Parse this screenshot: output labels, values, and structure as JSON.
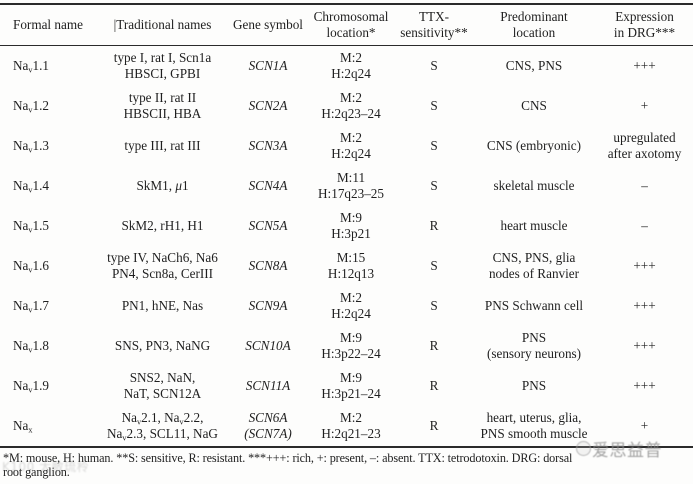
{
  "colors": {
    "text": "#1f1f1f",
    "rule": "#2b2b2b",
    "watermark_gray": "#8f8f8f"
  },
  "table": {
    "columns": [
      {
        "key": "formal",
        "lines": [
          "Formal name"
        ]
      },
      {
        "key": "traditional",
        "lines": [
          "|Traditional names"
        ]
      },
      {
        "key": "gene",
        "lines": [
          "Gene symbol"
        ]
      },
      {
        "key": "chromosomal",
        "lines": [
          "Chromosomal",
          "location*"
        ]
      },
      {
        "key": "ttx",
        "lines": [
          "TTX-",
          "sensitivity**"
        ]
      },
      {
        "key": "location",
        "lines": [
          "Predominant",
          "location"
        ]
      },
      {
        "key": "drg",
        "lines": [
          "Expression",
          "in DRG***"
        ]
      }
    ],
    "rows": [
      {
        "formal": [
          [
            {
              "t": "Na"
            },
            {
              "t": "v",
              "sub": true
            },
            {
              "t": "1.1"
            }
          ]
        ],
        "traditional": [
          "type I, rat I, Scn1a",
          "HBSCI, GPBI"
        ],
        "gene": [
          [
            {
              "t": "SCN1A",
              "i": true
            }
          ]
        ],
        "chromosomal": [
          "M:2",
          "H:2q24"
        ],
        "ttx": [
          "S"
        ],
        "location": [
          "CNS, PNS"
        ],
        "drg": [
          "+++"
        ]
      },
      {
        "formal": [
          [
            {
              "t": "Na"
            },
            {
              "t": "v",
              "sub": true
            },
            {
              "t": "1.2"
            }
          ]
        ],
        "traditional": [
          "type II, rat II",
          "HBSCII, HBA"
        ],
        "gene": [
          [
            {
              "t": "SCN2A",
              "i": true
            }
          ]
        ],
        "chromosomal": [
          "M:2",
          "H:2q23–24"
        ],
        "ttx": [
          "S"
        ],
        "location": [
          "CNS"
        ],
        "drg": [
          "+"
        ]
      },
      {
        "formal": [
          [
            {
              "t": "Na"
            },
            {
              "t": "v",
              "sub": true
            },
            {
              "t": "1.3"
            }
          ]
        ],
        "traditional": [
          "type III, rat III"
        ],
        "gene": [
          [
            {
              "t": "SCN3A",
              "i": true
            }
          ]
        ],
        "chromosomal": [
          "M:2",
          "H:2q24"
        ],
        "ttx": [
          "S"
        ],
        "location": [
          "CNS (embryonic)"
        ],
        "drg": [
          "upregulated",
          "after axotomy"
        ]
      },
      {
        "formal": [
          [
            {
              "t": "Na"
            },
            {
              "t": "v",
              "sub": true
            },
            {
              "t": "1.4"
            }
          ]
        ],
        "traditional": [
          [
            {
              "t": "SkM1, "
            },
            {
              "t": "μ",
              "i": true
            },
            {
              "t": "1"
            }
          ]
        ],
        "gene": [
          [
            {
              "t": "SCN4A",
              "i": true
            }
          ]
        ],
        "chromosomal": [
          "M:11",
          "H:17q23–25"
        ],
        "ttx": [
          "S"
        ],
        "location": [
          "skeletal muscle"
        ],
        "drg": [
          "–"
        ]
      },
      {
        "formal": [
          [
            {
              "t": "Na"
            },
            {
              "t": "v",
              "sub": true
            },
            {
              "t": "1.5"
            }
          ]
        ],
        "traditional": [
          "SkM2, rH1, H1"
        ],
        "gene": [
          [
            {
              "t": "SCN5A",
              "i": true
            }
          ]
        ],
        "chromosomal": [
          "M:9",
          "H:3p21"
        ],
        "ttx": [
          "R"
        ],
        "location": [
          "heart muscle"
        ],
        "drg": [
          "–"
        ]
      },
      {
        "formal": [
          [
            {
              "t": "Na"
            },
            {
              "t": "v",
              "sub": true
            },
            {
              "t": "1.6"
            }
          ]
        ],
        "traditional": [
          "type IV, NaCh6, Na6",
          "PN4, Scn8a, CerIII"
        ],
        "gene": [
          [
            {
              "t": "SCN8A",
              "i": true
            }
          ]
        ],
        "chromosomal": [
          "M:15",
          "H:12q13"
        ],
        "ttx": [
          "S"
        ],
        "location": [
          "CNS, PNS, glia",
          "nodes of Ranvier"
        ],
        "drg": [
          "+++"
        ]
      },
      {
        "formal": [
          [
            {
              "t": "Na"
            },
            {
              "t": "v",
              "sub": true
            },
            {
              "t": "1.7"
            }
          ]
        ],
        "traditional": [
          "PN1, hNE, Nas"
        ],
        "gene": [
          [
            {
              "t": "SCN9A",
              "i": true
            }
          ]
        ],
        "chromosomal": [
          "M:2",
          "H:2q24"
        ],
        "ttx": [
          "S"
        ],
        "location": [
          "PNS Schwann cell"
        ],
        "drg": [
          "+++"
        ]
      },
      {
        "formal": [
          [
            {
              "t": "Na"
            },
            {
              "t": "v",
              "sub": true
            },
            {
              "t": "1.8"
            }
          ]
        ],
        "traditional": [
          "SNS, PN3, NaNG"
        ],
        "gene": [
          [
            {
              "t": "SCN10A",
              "i": true
            }
          ]
        ],
        "chromosomal": [
          "M:9",
          "H:3p22–24"
        ],
        "ttx": [
          "R"
        ],
        "location": [
          "PNS",
          "(sensory neurons)"
        ],
        "drg": [
          "+++"
        ]
      },
      {
        "formal": [
          [
            {
              "t": "Na"
            },
            {
              "t": "v",
              "sub": true
            },
            {
              "t": "1.9"
            }
          ]
        ],
        "traditional": [
          "SNS2, NaN,",
          "NaT, SCN12A"
        ],
        "gene": [
          [
            {
              "t": "SCN11A",
              "i": true
            }
          ]
        ],
        "chromosomal": [
          "M:9",
          "H:3p21–24"
        ],
        "ttx": [
          "R"
        ],
        "location": [
          "PNS"
        ],
        "drg": [
          "+++"
        ]
      },
      {
        "formal": [
          [
            {
              "t": "Na"
            },
            {
              "t": "x",
              "sub": true
            }
          ]
        ],
        "traditional": [
          [
            {
              "t": "Na"
            },
            {
              "t": "v",
              "sub": true
            },
            {
              "t": "2.1, Na"
            },
            {
              "t": "v",
              "sub": true
            },
            {
              "t": "2.2,"
            }
          ],
          [
            {
              "t": "Na"
            },
            {
              "t": "v",
              "sub": true
            },
            {
              "t": "2.3, SCL11, NaG"
            }
          ]
        ],
        "gene": [
          [
            {
              "t": "SCN6A",
              "i": true
            }
          ],
          [
            {
              "t": "(SCN7A)",
              "i": true
            }
          ]
        ],
        "chromosomal": [
          "M:2",
          "H:2q21–23"
        ],
        "ttx": [
          "R"
        ],
        "location": [
          "heart, uterus, glia,",
          "PNS smooth muscle"
        ],
        "drg": [
          "+"
        ]
      }
    ]
  },
  "footnote": {
    "line1": "*M: mouse, H: human. **S: sensitive, R: resistant. ***+++: rich, +: present, –: absent. TTX: tetrodotoxin. DRG: dorsal",
    "line2": "root ganglion."
  },
  "watermarks": {
    "right": {
      "icon": "circle-logo",
      "text": "爱思益普"
    },
    "left": {
      "text": "K100 太敝琉柃"
    }
  }
}
